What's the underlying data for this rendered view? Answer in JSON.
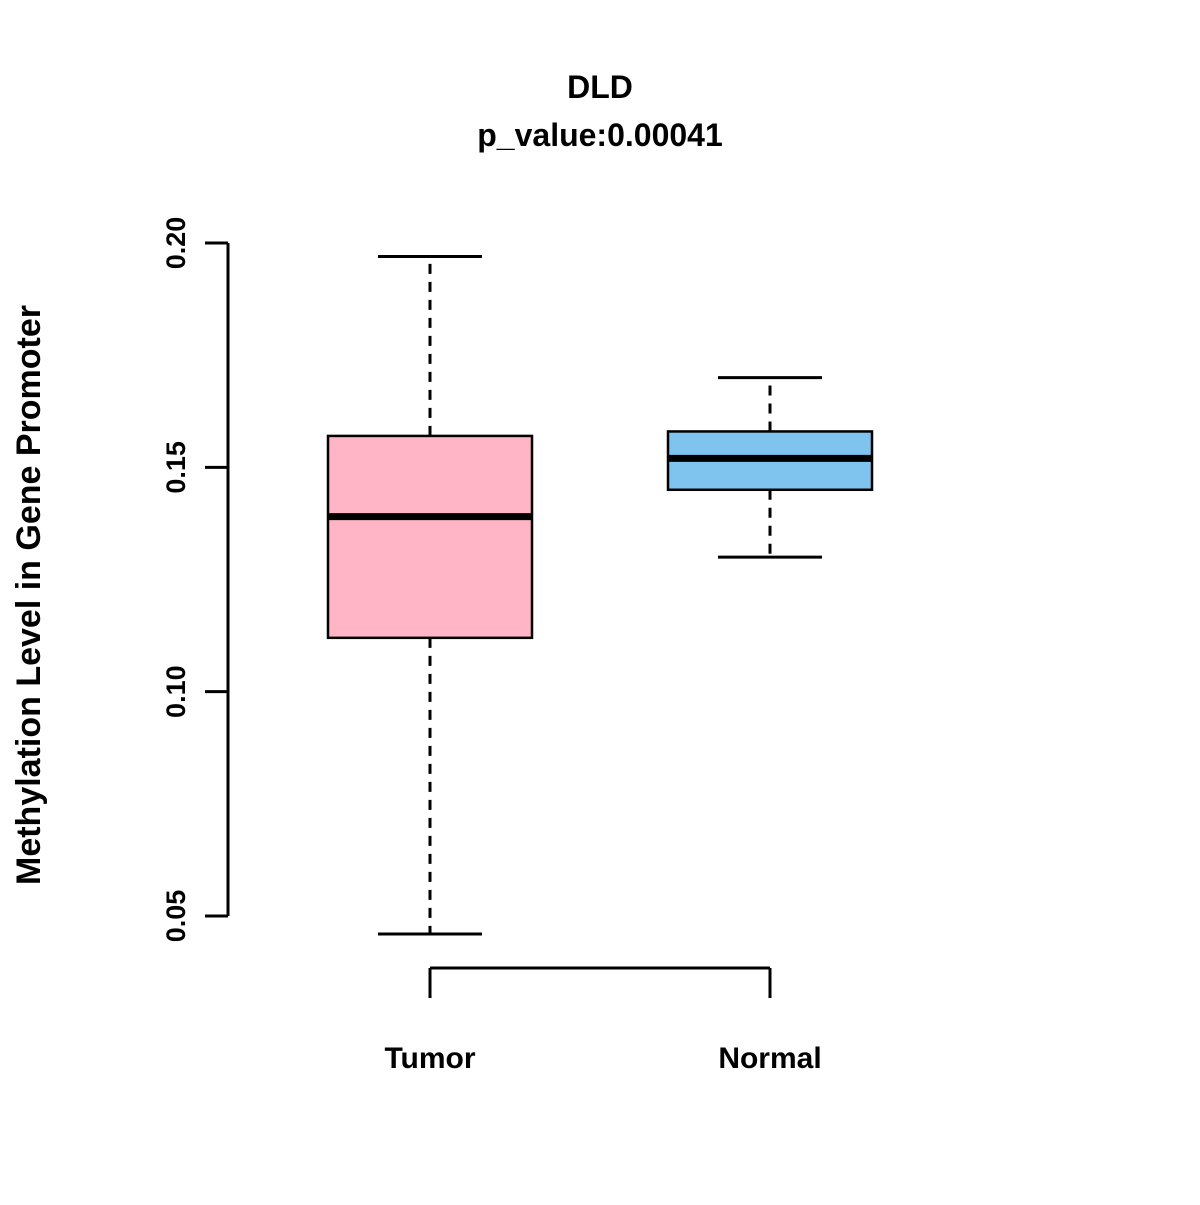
{
  "chart_data": {
    "type": "boxplot",
    "title": "DLD",
    "subtitle": "p_value:0.00041",
    "ylabel": "Methylation Level in Gene Promoter",
    "xlabel": "",
    "categories": [
      "Tumor",
      "Normal"
    ],
    "series": [
      {
        "name": "Tumor",
        "min": 0.046,
        "q1": 0.112,
        "median": 0.139,
        "q3": 0.157,
        "max": 0.197,
        "color": "#FFB5C5"
      },
      {
        "name": "Normal",
        "min": 0.13,
        "q1": 0.145,
        "median": 0.152,
        "q3": 0.158,
        "max": 0.17,
        "color": "#7EC4EF"
      }
    ],
    "ylim": [
      0.05,
      0.2
    ],
    "yticks": [
      "0.05",
      "0.10",
      "0.15",
      "0.20"
    ],
    "grid": false,
    "legend": "none",
    "colors": {
      "box_border": "#000000",
      "median_line": "#000000",
      "background": "#FFFFFF"
    }
  }
}
